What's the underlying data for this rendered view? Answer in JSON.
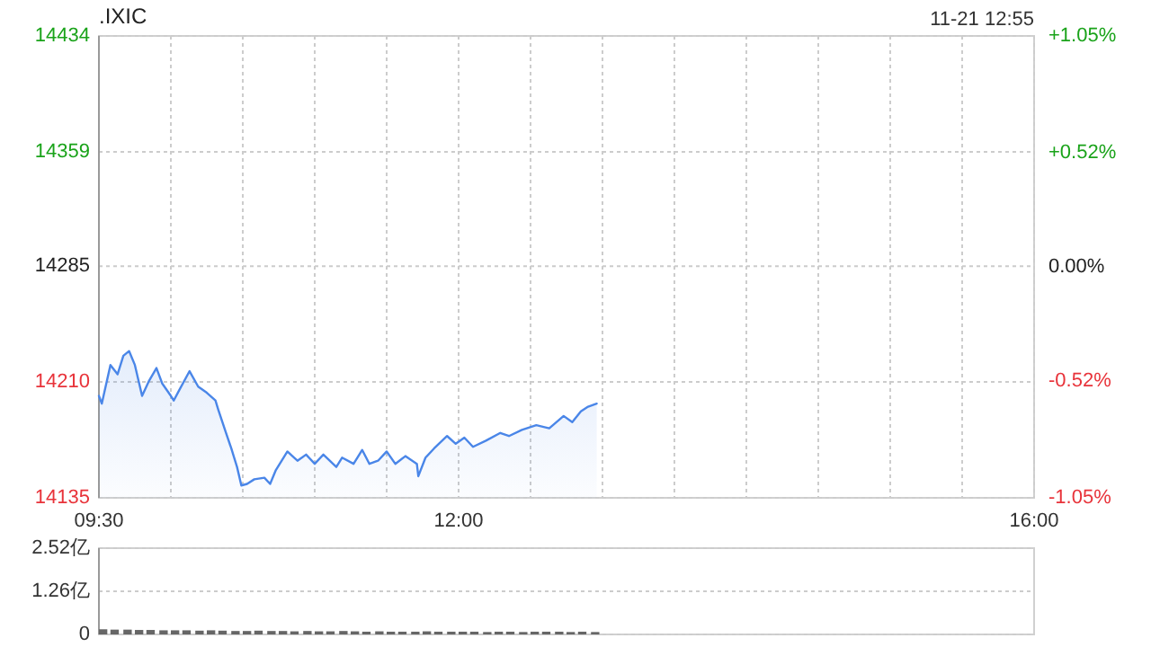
{
  "chart_data": [
    {
      "type": "area",
      "title": ".IXIC",
      "annotations": [
        "11-21 12:55"
      ],
      "color": "#4a86e8",
      "grid": true,
      "x": [
        9.5,
        9.52,
        9.58,
        9.63,
        9.67,
        9.71,
        9.75,
        9.8,
        9.85,
        9.9,
        9.94,
        10.0,
        10.02,
        10.06,
        10.13,
        10.19,
        10.25,
        10.31,
        10.33,
        10.38,
        10.42,
        10.46,
        10.49,
        10.53,
        10.58,
        10.65,
        10.69,
        10.73,
        10.81,
        10.88,
        10.94,
        11.0,
        11.06,
        11.15,
        11.19,
        11.27,
        11.33,
        11.38,
        11.44,
        11.5,
        11.56,
        11.63,
        11.71,
        11.72,
        11.77,
        11.83,
        11.92,
        11.98,
        12.04,
        12.1,
        12.19,
        12.29,
        12.35,
        12.44,
        12.54,
        12.63,
        12.73,
        12.79,
        12.85,
        12.9,
        12.96
      ],
      "values": [
        14201,
        14196,
        14221,
        14215,
        14227,
        14230,
        14221,
        14201,
        14211,
        14219,
        14209,
        14201,
        14198,
        14205,
        14217,
        14207,
        14203,
        14198,
        14192,
        14178,
        14167,
        14155,
        14143,
        14144,
        14147,
        14148,
        14144,
        14153,
        14165,
        14159,
        14163,
        14157,
        14163,
        14155,
        14161,
        14157,
        14166,
        14157,
        14159,
        14165,
        14157,
        14162,
        14157,
        14149,
        14161,
        14167,
        14175,
        14170,
        14174,
        14168,
        14172,
        14177,
        14175,
        14179,
        14182,
        14180,
        14188,
        14184,
        14191,
        14194,
        14196
      ],
      "xlim": [
        9.5,
        16
      ],
      "xticks": [
        {
          "value": 9.5,
          "label": "09:30"
        },
        {
          "value": 10,
          "label": null
        },
        {
          "value": 10.5,
          "label": null
        },
        {
          "value": 11,
          "label": null
        },
        {
          "value": 11.5,
          "label": null
        },
        {
          "value": 12,
          "label": "12:00"
        },
        {
          "value": 12.5,
          "label": null
        },
        {
          "value": 13,
          "label": null
        },
        {
          "value": 13.5,
          "label": null
        },
        {
          "value": 14,
          "label": null
        },
        {
          "value": 14.5,
          "label": null
        },
        {
          "value": 15,
          "label": null
        },
        {
          "value": 15.5,
          "label": null
        },
        {
          "value": 16,
          "label": "16:00"
        }
      ],
      "ylim": [
        14135,
        14434
      ],
      "yticks": [
        14135,
        14210,
        14285,
        14359,
        14434
      ],
      "y2lim": [
        -1.05,
        1.05
      ],
      "y2ticks": [
        {
          "value": -1.05,
          "label": "-1.05%"
        },
        {
          "value": -0.52,
          "label": "-0.52%"
        },
        {
          "value": 0,
          "label": "0.00%"
        },
        {
          "value": 0.52,
          "label": "+0.52%"
        },
        {
          "value": 1.05,
          "label": "+1.05%"
        }
      ]
    },
    {
      "type": "bar",
      "color": "#666666",
      "grid": "y",
      "tick_labels": "y",
      "x": [
        9.5,
        9.58,
        9.67,
        9.75,
        9.83,
        9.92,
        10,
        10.08,
        10.17,
        10.25,
        10.33,
        10.42,
        10.5,
        10.58,
        10.67,
        10.75,
        10.83,
        10.92,
        11,
        11.08,
        11.17,
        11.25,
        11.33,
        11.42,
        11.5,
        11.58,
        11.67,
        11.75,
        11.83,
        11.92,
        12,
        12.08,
        12.17,
        12.25,
        12.33,
        12.42,
        12.5,
        12.58,
        12.67,
        12.75,
        12.83,
        12.92
      ],
      "values": [
        0.15,
        0.14,
        0.14,
        0.13,
        0.13,
        0.12,
        0.12,
        0.12,
        0.11,
        0.12,
        0.11,
        0.1,
        0.1,
        0.11,
        0.1,
        0.1,
        0.09,
        0.1,
        0.09,
        0.09,
        0.1,
        0.09,
        0.08,
        0.09,
        0.08,
        0.08,
        0.08,
        0.09,
        0.08,
        0.08,
        0.08,
        0.08,
        0.07,
        0.08,
        0.08,
        0.07,
        0.08,
        0.08,
        0.08,
        0.07,
        0.08,
        0.07
      ],
      "xlim": [
        9.5,
        16
      ],
      "ylim": [
        0,
        2.52
      ],
      "yticks": [
        0,
        {
          "value": 1.26,
          "label": "1.26亿"
        },
        {
          "value": 2.52,
          "label": "2.52亿"
        }
      ]
    }
  ]
}
